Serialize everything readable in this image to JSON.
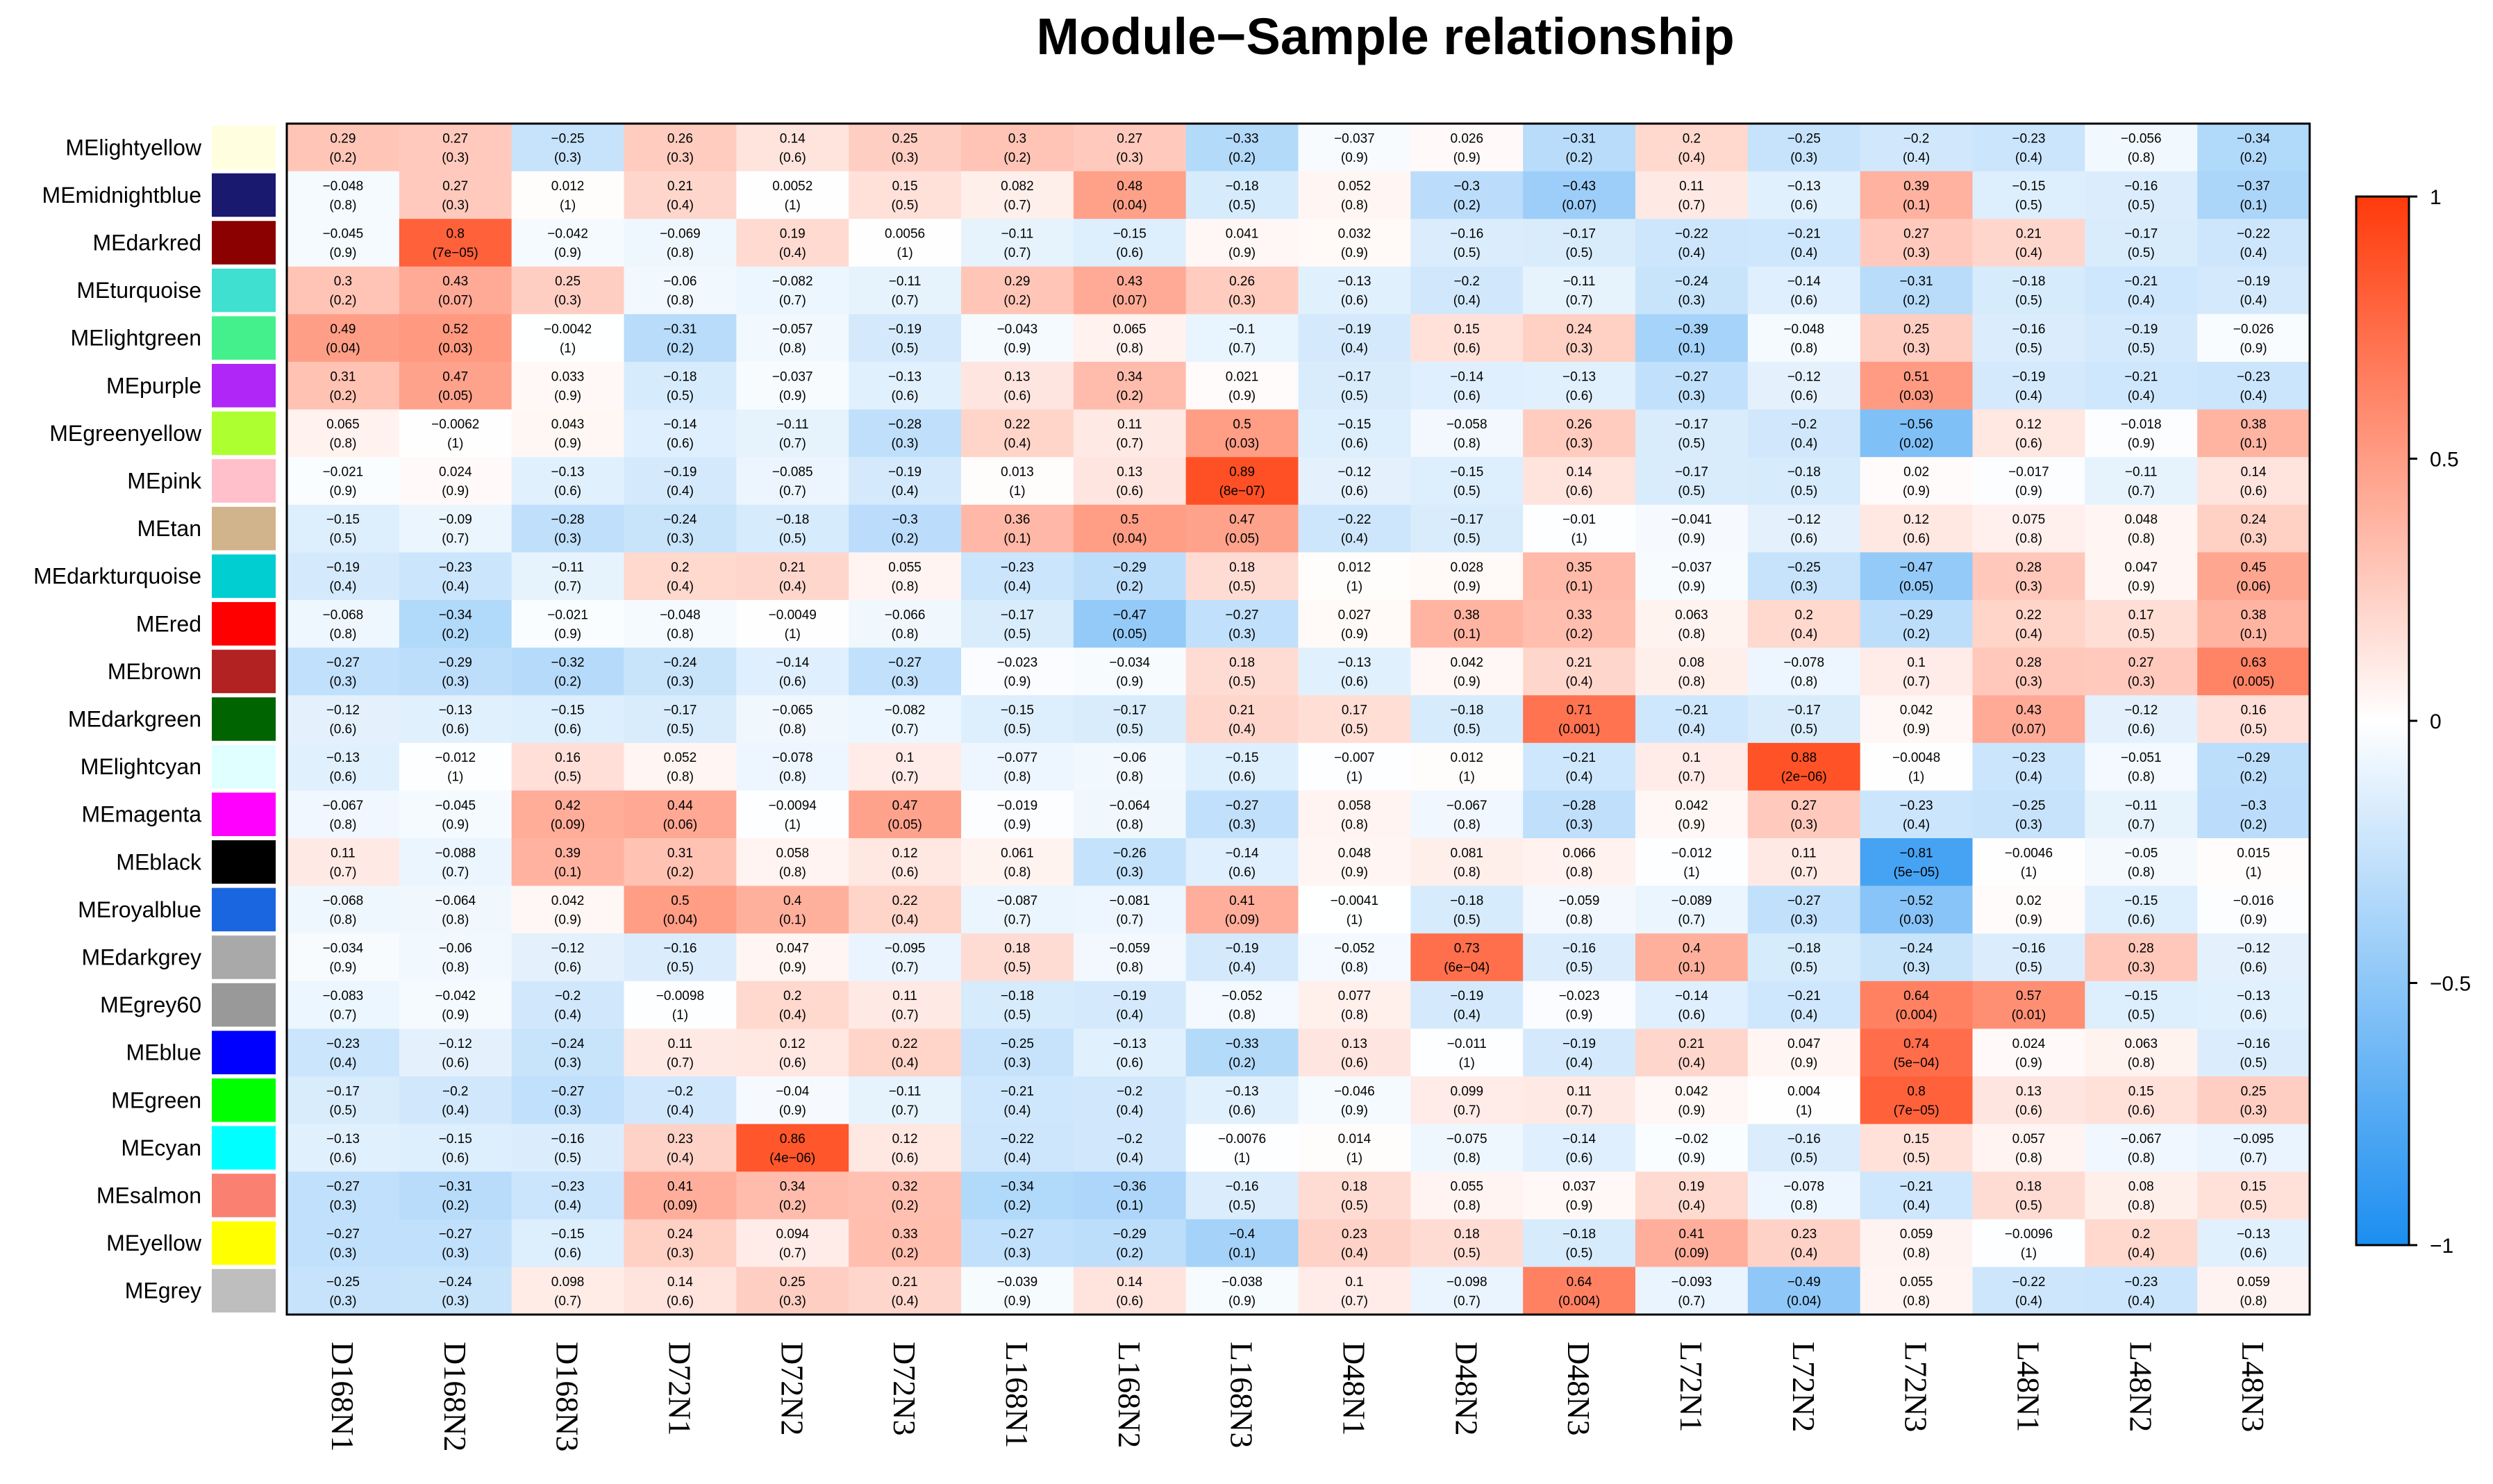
{
  "chart_data": {
    "type": "heatmap",
    "title": "Module−Sample relationship",
    "rows": [
      "MElightyellow",
      "MEmidnightblue",
      "MEdarkred",
      "MEturquoise",
      "MElightgreen",
      "MEpurple",
      "MEgreenyellow",
      "MEpink",
      "MEtan",
      "MEdarkturquoise",
      "MEred",
      "MEbrown",
      "MEdarkgreen",
      "MElightcyan",
      "MEmagenta",
      "MEblack",
      "MEroyalblue",
      "MEdarkgrey",
      "MEgrey60",
      "MEblue",
      "MEgreen",
      "MEcyan",
      "MEsalmon",
      "MEyellow",
      "MEgrey"
    ],
    "row_colors": [
      "#FFFFE0",
      "#191970",
      "#8B0000",
      "#40E0D0",
      "#44F08C",
      "#B026F6",
      "#ADFF2F",
      "#FFC0CB",
      "#D2B48C",
      "#00CED1",
      "#FF0000",
      "#B22222",
      "#006400",
      "#E0FFFF",
      "#FF00FF",
      "#000000",
      "#1A66E0",
      "#A9A9A9",
      "#999999",
      "#0000FF",
      "#00FF00",
      "#00FFFF",
      "#FA8072",
      "#FFFF00",
      "#BEBEBE"
    ],
    "columns": [
      "D168N1",
      "D168N2",
      "D168N3",
      "D72N1",
      "D72N2",
      "D72N3",
      "L168N1",
      "L168N2",
      "L168N3",
      "D48N1",
      "D48N2",
      "D48N3",
      "L72N1",
      "L72N2",
      "L72N3",
      "L48N1",
      "L48N2",
      "L48N3"
    ],
    "values": [
      [
        0.29,
        0.27,
        -0.25,
        0.26,
        0.14,
        0.25,
        0.3,
        0.27,
        -0.33,
        -0.037,
        0.026,
        -0.31,
        0.2,
        -0.25,
        -0.2,
        -0.23,
        -0.056,
        -0.34
      ],
      [
        -0.048,
        0.27,
        0.012,
        0.21,
        0.0052,
        0.15,
        0.082,
        0.48,
        -0.18,
        0.052,
        -0.3,
        -0.43,
        0.11,
        -0.13,
        0.39,
        -0.15,
        -0.16,
        -0.37
      ],
      [
        -0.045,
        0.8,
        -0.042,
        -0.069,
        0.19,
        0.0056,
        -0.11,
        -0.15,
        0.041,
        0.032,
        -0.16,
        -0.17,
        -0.22,
        -0.21,
        0.27,
        0.21,
        -0.17,
        -0.22
      ],
      [
        0.3,
        0.43,
        0.25,
        -0.06,
        -0.082,
        -0.11,
        0.29,
        0.43,
        0.26,
        -0.13,
        -0.2,
        -0.11,
        -0.24,
        -0.14,
        -0.31,
        -0.18,
        -0.21,
        -0.19
      ],
      [
        0.49,
        0.52,
        -0.0042,
        -0.31,
        -0.057,
        -0.19,
        -0.043,
        0.065,
        -0.1,
        -0.19,
        0.15,
        0.24,
        -0.39,
        -0.048,
        0.25,
        -0.16,
        -0.19,
        -0.026
      ],
      [
        0.31,
        0.47,
        0.033,
        -0.18,
        -0.037,
        -0.13,
        0.13,
        0.34,
        0.021,
        -0.17,
        -0.14,
        -0.13,
        -0.27,
        -0.12,
        0.51,
        -0.19,
        -0.21,
        -0.23
      ],
      [
        0.065,
        -0.0062,
        0.043,
        -0.14,
        -0.11,
        -0.28,
        0.22,
        0.11,
        0.5,
        -0.15,
        -0.058,
        0.26,
        -0.17,
        -0.2,
        -0.56,
        0.12,
        -0.018,
        0.38
      ],
      [
        -0.021,
        0.024,
        -0.13,
        -0.19,
        -0.085,
        -0.19,
        0.013,
        0.13,
        0.89,
        -0.12,
        -0.15,
        0.14,
        -0.17,
        -0.18,
        0.02,
        -0.017,
        -0.11,
        0.14
      ],
      [
        -0.15,
        -0.09,
        -0.28,
        -0.24,
        -0.18,
        -0.3,
        0.36,
        0.5,
        0.47,
        -0.22,
        -0.17,
        -0.01,
        -0.041,
        -0.12,
        0.12,
        0.075,
        0.048,
        0.24
      ],
      [
        -0.19,
        -0.23,
        -0.11,
        0.2,
        0.21,
        0.055,
        -0.23,
        -0.29,
        0.18,
        0.012,
        0.028,
        0.35,
        -0.037,
        -0.25,
        -0.47,
        0.28,
        0.047,
        0.45
      ],
      [
        -0.068,
        -0.34,
        -0.021,
        -0.048,
        -0.0049,
        -0.066,
        -0.17,
        -0.47,
        -0.27,
        0.027,
        0.38,
        0.33,
        0.063,
        0.2,
        -0.29,
        0.22,
        0.17,
        0.38
      ],
      [
        -0.27,
        -0.29,
        -0.32,
        -0.24,
        -0.14,
        -0.27,
        -0.023,
        -0.034,
        0.18,
        -0.13,
        0.042,
        0.21,
        0.08,
        -0.078,
        0.1,
        0.28,
        0.27,
        0.63
      ],
      [
        -0.12,
        -0.13,
        -0.15,
        -0.17,
        -0.065,
        -0.082,
        -0.15,
        -0.17,
        0.21,
        0.17,
        -0.18,
        0.71,
        -0.21,
        -0.17,
        0.042,
        0.43,
        -0.12,
        0.16
      ],
      [
        -0.13,
        -0.012,
        0.16,
        0.052,
        -0.078,
        0.1,
        -0.077,
        -0.06,
        -0.15,
        -0.007,
        0.012,
        -0.21,
        0.1,
        0.88,
        -0.0048,
        -0.23,
        -0.051,
        -0.29
      ],
      [
        -0.067,
        -0.045,
        0.42,
        0.44,
        -0.0094,
        0.47,
        -0.019,
        -0.064,
        -0.27,
        0.058,
        -0.067,
        -0.28,
        0.042,
        0.27,
        -0.23,
        -0.25,
        -0.11,
        -0.3
      ],
      [
        0.11,
        -0.088,
        0.39,
        0.31,
        0.058,
        0.12,
        0.061,
        -0.26,
        -0.14,
        0.048,
        0.081,
        0.066,
        -0.012,
        0.11,
        -0.81,
        -0.0046,
        -0.05,
        0.015
      ],
      [
        -0.068,
        -0.064,
        0.042,
        0.5,
        0.4,
        0.22,
        -0.087,
        -0.081,
        0.41,
        -0.0041,
        -0.18,
        -0.059,
        -0.089,
        -0.27,
        -0.52,
        0.02,
        -0.15,
        -0.016
      ],
      [
        -0.034,
        -0.06,
        -0.12,
        -0.16,
        0.047,
        -0.095,
        0.18,
        -0.059,
        -0.19,
        -0.052,
        0.73,
        -0.16,
        0.4,
        -0.18,
        -0.24,
        -0.16,
        0.28,
        -0.12
      ],
      [
        -0.083,
        -0.042,
        -0.2,
        -0.0098,
        0.2,
        0.11,
        -0.18,
        -0.19,
        -0.052,
        0.077,
        -0.19,
        -0.023,
        -0.14,
        -0.21,
        0.64,
        0.57,
        -0.15,
        -0.13
      ],
      [
        -0.23,
        -0.12,
        -0.24,
        0.11,
        0.12,
        0.22,
        -0.25,
        -0.13,
        -0.33,
        0.13,
        -0.011,
        -0.19,
        0.21,
        0.047,
        0.74,
        0.024,
        0.063,
        -0.16
      ],
      [
        -0.17,
        -0.2,
        -0.27,
        -0.2,
        -0.04,
        -0.11,
        -0.21,
        -0.2,
        -0.13,
        -0.046,
        0.099,
        0.11,
        0.042,
        0.004,
        0.8,
        0.13,
        0.15,
        0.25
      ],
      [
        -0.13,
        -0.15,
        -0.16,
        0.23,
        0.86,
        0.12,
        -0.22,
        -0.2,
        -0.0076,
        0.014,
        -0.075,
        -0.14,
        -0.02,
        -0.16,
        0.15,
        0.057,
        -0.067,
        -0.095
      ],
      [
        -0.27,
        -0.31,
        -0.23,
        0.41,
        0.34,
        0.32,
        -0.34,
        -0.36,
        -0.16,
        0.18,
        0.055,
        0.037,
        0.19,
        -0.078,
        -0.21,
        0.18,
        0.08,
        0.15
      ],
      [
        -0.27,
        -0.27,
        -0.15,
        0.24,
        0.094,
        0.33,
        -0.27,
        -0.29,
        -0.4,
        0.23,
        0.18,
        -0.18,
        0.41,
        0.23,
        0.059,
        -0.0096,
        0.2,
        -0.13
      ],
      [
        -0.25,
        -0.24,
        0.098,
        0.14,
        0.25,
        0.21,
        -0.039,
        0.14,
        -0.038,
        0.1,
        -0.098,
        0.64,
        -0.093,
        -0.49,
        0.055,
        -0.22,
        -0.23,
        0.059
      ]
    ],
    "pvalues": [
      [
        "(0.2)",
        "(0.3)",
        "(0.3)",
        "(0.3)",
        "(0.6)",
        "(0.3)",
        "(0.2)",
        "(0.3)",
        "(0.2)",
        "(0.9)",
        "(0.9)",
        "(0.2)",
        "(0.4)",
        "(0.3)",
        "(0.4)",
        "(0.4)",
        "(0.8)",
        "(0.2)"
      ],
      [
        "(0.8)",
        "(0.3)",
        "(1)",
        "(0.4)",
        "(1)",
        "(0.5)",
        "(0.7)",
        "(0.04)",
        "(0.5)",
        "(0.8)",
        "(0.2)",
        "(0.07)",
        "(0.7)",
        "(0.6)",
        "(0.1)",
        "(0.5)",
        "(0.5)",
        "(0.1)"
      ],
      [
        "(0.9)",
        "(7e−05)",
        "(0.9)",
        "(0.8)",
        "(0.4)",
        "(1)",
        "(0.7)",
        "(0.6)",
        "(0.9)",
        "(0.9)",
        "(0.5)",
        "(0.5)",
        "(0.4)",
        "(0.4)",
        "(0.3)",
        "(0.4)",
        "(0.5)",
        "(0.4)"
      ],
      [
        "(0.2)",
        "(0.07)",
        "(0.3)",
        "(0.8)",
        "(0.7)",
        "(0.7)",
        "(0.2)",
        "(0.07)",
        "(0.3)",
        "(0.6)",
        "(0.4)",
        "(0.7)",
        "(0.3)",
        "(0.6)",
        "(0.2)",
        "(0.5)",
        "(0.4)",
        "(0.4)"
      ],
      [
        "(0.04)",
        "(0.03)",
        "(1)",
        "(0.2)",
        "(0.8)",
        "(0.5)",
        "(0.9)",
        "(0.8)",
        "(0.7)",
        "(0.4)",
        "(0.6)",
        "(0.3)",
        "(0.1)",
        "(0.8)",
        "(0.3)",
        "(0.5)",
        "(0.5)",
        "(0.9)"
      ],
      [
        "(0.2)",
        "(0.05)",
        "(0.9)",
        "(0.5)",
        "(0.9)",
        "(0.6)",
        "(0.6)",
        "(0.2)",
        "(0.9)",
        "(0.5)",
        "(0.6)",
        "(0.6)",
        "(0.3)",
        "(0.6)",
        "(0.03)",
        "(0.4)",
        "(0.4)",
        "(0.4)"
      ],
      [
        "(0.8)",
        "(1)",
        "(0.9)",
        "(0.6)",
        "(0.7)",
        "(0.3)",
        "(0.4)",
        "(0.7)",
        "(0.03)",
        "(0.6)",
        "(0.8)",
        "(0.3)",
        "(0.5)",
        "(0.4)",
        "(0.02)",
        "(0.6)",
        "(0.9)",
        "(0.1)"
      ],
      [
        "(0.9)",
        "(0.9)",
        "(0.6)",
        "(0.4)",
        "(0.7)",
        "(0.4)",
        "(1)",
        "(0.6)",
        "(8e−07)",
        "(0.6)",
        "(0.5)",
        "(0.6)",
        "(0.5)",
        "(0.5)",
        "(0.9)",
        "(0.9)",
        "(0.7)",
        "(0.6)"
      ],
      [
        "(0.5)",
        "(0.7)",
        "(0.3)",
        "(0.3)",
        "(0.5)",
        "(0.2)",
        "(0.1)",
        "(0.04)",
        "(0.05)",
        "(0.4)",
        "(0.5)",
        "(1)",
        "(0.9)",
        "(0.6)",
        "(0.6)",
        "(0.8)",
        "(0.8)",
        "(0.3)"
      ],
      [
        "(0.4)",
        "(0.4)",
        "(0.7)",
        "(0.4)",
        "(0.4)",
        "(0.8)",
        "(0.4)",
        "(0.2)",
        "(0.5)",
        "(1)",
        "(0.9)",
        "(0.1)",
        "(0.9)",
        "(0.3)",
        "(0.05)",
        "(0.3)",
        "(0.9)",
        "(0.06)"
      ],
      [
        "(0.8)",
        "(0.2)",
        "(0.9)",
        "(0.8)",
        "(1)",
        "(0.8)",
        "(0.5)",
        "(0.05)",
        "(0.3)",
        "(0.9)",
        "(0.1)",
        "(0.2)",
        "(0.8)",
        "(0.4)",
        "(0.2)",
        "(0.4)",
        "(0.5)",
        "(0.1)"
      ],
      [
        "(0.3)",
        "(0.3)",
        "(0.2)",
        "(0.3)",
        "(0.6)",
        "(0.3)",
        "(0.9)",
        "(0.9)",
        "(0.5)",
        "(0.6)",
        "(0.9)",
        "(0.4)",
        "(0.8)",
        "(0.8)",
        "(0.7)",
        "(0.3)",
        "(0.3)",
        "(0.005)"
      ],
      [
        "(0.6)",
        "(0.6)",
        "(0.6)",
        "(0.5)",
        "(0.8)",
        "(0.7)",
        "(0.5)",
        "(0.5)",
        "(0.4)",
        "(0.5)",
        "(0.5)",
        "(0.001)",
        "(0.4)",
        "(0.5)",
        "(0.9)",
        "(0.07)",
        "(0.6)",
        "(0.5)"
      ],
      [
        "(0.6)",
        "(1)",
        "(0.5)",
        "(0.8)",
        "(0.8)",
        "(0.7)",
        "(0.8)",
        "(0.8)",
        "(0.6)",
        "(1)",
        "(1)",
        "(0.4)",
        "(0.7)",
        "(2e−06)",
        "(1)",
        "(0.4)",
        "(0.8)",
        "(0.2)"
      ],
      [
        "(0.8)",
        "(0.9)",
        "(0.09)",
        "(0.06)",
        "(1)",
        "(0.05)",
        "(0.9)",
        "(0.8)",
        "(0.3)",
        "(0.8)",
        "(0.8)",
        "(0.3)",
        "(0.9)",
        "(0.3)",
        "(0.4)",
        "(0.3)",
        "(0.7)",
        "(0.2)"
      ],
      [
        "(0.7)",
        "(0.7)",
        "(0.1)",
        "(0.2)",
        "(0.8)",
        "(0.6)",
        "(0.8)",
        "(0.3)",
        "(0.6)",
        "(0.9)",
        "(0.8)",
        "(0.8)",
        "(1)",
        "(0.7)",
        "(5e−05)",
        "(1)",
        "(0.8)",
        "(1)"
      ],
      [
        "(0.8)",
        "(0.8)",
        "(0.9)",
        "(0.04)",
        "(0.1)",
        "(0.4)",
        "(0.7)",
        "(0.7)",
        "(0.09)",
        "(1)",
        "(0.5)",
        "(0.8)",
        "(0.7)",
        "(0.3)",
        "(0.03)",
        "(0.9)",
        "(0.6)",
        "(0.9)"
      ],
      [
        "(0.9)",
        "(0.8)",
        "(0.6)",
        "(0.5)",
        "(0.9)",
        "(0.7)",
        "(0.5)",
        "(0.8)",
        "(0.4)",
        "(0.8)",
        "(6e−04)",
        "(0.5)",
        "(0.1)",
        "(0.5)",
        "(0.3)",
        "(0.5)",
        "(0.3)",
        "(0.6)"
      ],
      [
        "(0.7)",
        "(0.9)",
        "(0.4)",
        "(1)",
        "(0.4)",
        "(0.7)",
        "(0.5)",
        "(0.4)",
        "(0.8)",
        "(0.8)",
        "(0.4)",
        "(0.9)",
        "(0.6)",
        "(0.4)",
        "(0.004)",
        "(0.01)",
        "(0.5)",
        "(0.6)"
      ],
      [
        "(0.4)",
        "(0.6)",
        "(0.3)",
        "(0.7)",
        "(0.6)",
        "(0.4)",
        "(0.3)",
        "(0.6)",
        "(0.2)",
        "(0.6)",
        "(1)",
        "(0.4)",
        "(0.4)",
        "(0.9)",
        "(5e−04)",
        "(0.9)",
        "(0.8)",
        "(0.5)"
      ],
      [
        "(0.5)",
        "(0.4)",
        "(0.3)",
        "(0.4)",
        "(0.9)",
        "(0.7)",
        "(0.4)",
        "(0.4)",
        "(0.6)",
        "(0.9)",
        "(0.7)",
        "(0.7)",
        "(0.9)",
        "(1)",
        "(7e−05)",
        "(0.6)",
        "(0.6)",
        "(0.3)"
      ],
      [
        "(0.6)",
        "(0.6)",
        "(0.5)",
        "(0.4)",
        "(4e−06)",
        "(0.6)",
        "(0.4)",
        "(0.4)",
        "(1)",
        "(1)",
        "(0.8)",
        "(0.6)",
        "(0.9)",
        "(0.5)",
        "(0.5)",
        "(0.8)",
        "(0.8)",
        "(0.7)"
      ],
      [
        "(0.3)",
        "(0.2)",
        "(0.4)",
        "(0.09)",
        "(0.2)",
        "(0.2)",
        "(0.2)",
        "(0.1)",
        "(0.5)",
        "(0.5)",
        "(0.8)",
        "(0.9)",
        "(0.4)",
        "(0.8)",
        "(0.4)",
        "(0.5)",
        "(0.8)",
        "(0.5)"
      ],
      [
        "(0.3)",
        "(0.3)",
        "(0.6)",
        "(0.3)",
        "(0.7)",
        "(0.2)",
        "(0.3)",
        "(0.2)",
        "(0.1)",
        "(0.4)",
        "(0.5)",
        "(0.5)",
        "(0.09)",
        "(0.4)",
        "(0.8)",
        "(1)",
        "(0.4)",
        "(0.6)"
      ],
      [
        "(0.3)",
        "(0.3)",
        "(0.7)",
        "(0.6)",
        "(0.3)",
        "(0.4)",
        "(0.9)",
        "(0.6)",
        "(0.9)",
        "(0.7)",
        "(0.7)",
        "(0.004)",
        "(0.7)",
        "(0.04)",
        "(0.8)",
        "(0.4)",
        "(0.4)",
        "(0.8)"
      ]
    ],
    "color_scale": {
      "min": -1,
      "max": 1,
      "low_color": "#1B8EF0",
      "mid_color": "#FFFFFF",
      "high_color": "#FF3A0A",
      "ticks": [
        1,
        0.5,
        0,
        -0.5,
        -1
      ],
      "tick_labels": [
        "1",
        "0.5",
        "0",
        "−0.5",
        "−1"
      ]
    }
  }
}
